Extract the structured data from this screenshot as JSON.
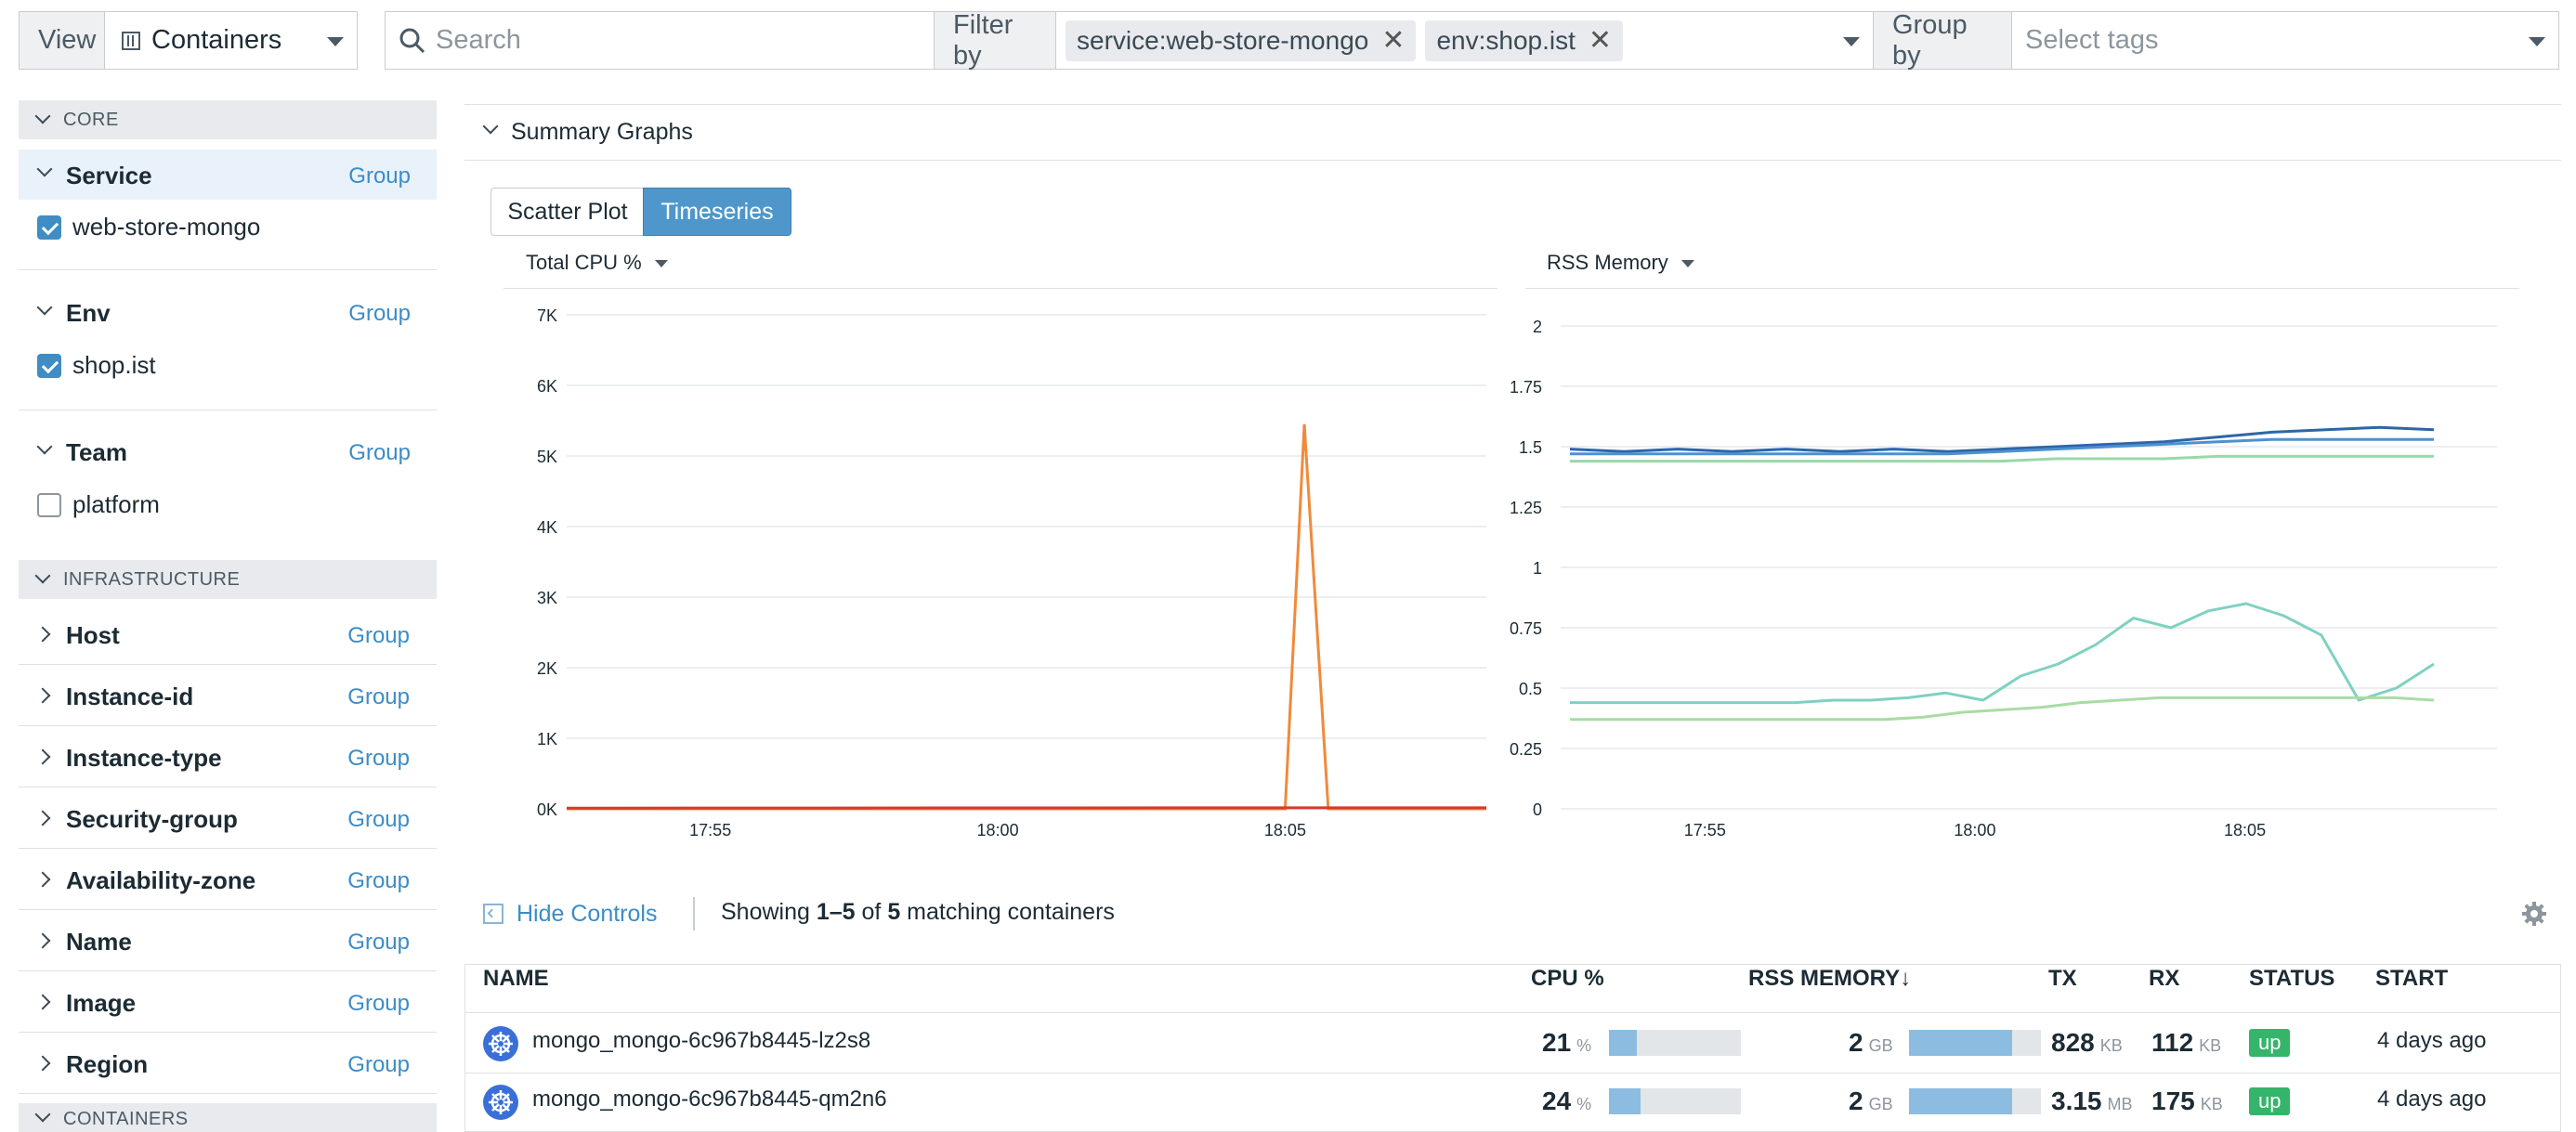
{
  "topbar": {
    "view_label": "View",
    "view_value": "Containers",
    "search_placeholder": "Search",
    "filter_label": "Filter by",
    "filter_tags": [
      "service:web-store-mongo",
      "env:shop.ist"
    ],
    "group_label": "Group by",
    "group_placeholder": "Select tags"
  },
  "sidebar": {
    "core_header": "CORE",
    "infra_header": "INFRASTRUCTURE",
    "containers_header": "CONTAINERS",
    "group_link": "Group",
    "facets": {
      "service": {
        "title": "Service",
        "value": "web-store-mongo",
        "checked": true
      },
      "env": {
        "title": "Env",
        "value": "shop.ist",
        "checked": true
      },
      "team": {
        "title": "Team",
        "value": "platform",
        "checked": false
      }
    },
    "infra_items": [
      "Host",
      "Instance-id",
      "Instance-type",
      "Security-group",
      "Availability-zone",
      "Name",
      "Image",
      "Region"
    ]
  },
  "summary": {
    "title": "Summary Graphs",
    "toggle_scatter": "Scatter Plot",
    "toggle_timeseries": "Timeseries"
  },
  "chart_data": [
    {
      "type": "line",
      "title": "Total CPU %",
      "x_ticks": [
        "17:55",
        "18:00",
        "18:05"
      ],
      "y_ticks": [
        "7K",
        "6K",
        "5K",
        "4K",
        "3K",
        "2K",
        "1K",
        "0K"
      ],
      "ylim": [
        0,
        7000
      ],
      "x": [
        "17:52:30",
        "18:05:00",
        "18:05:20",
        "18:05:45",
        "18:08:30"
      ],
      "series": [
        {
          "color": "#f08a3b",
          "values": [
            0,
            0,
            5450,
            0,
            0
          ]
        },
        {
          "color": "#d63a2a",
          "values": [
            10,
            15,
            15,
            15,
            15
          ]
        }
      ]
    },
    {
      "type": "line",
      "title": "RSS Memory",
      "x_ticks": [
        "17:55",
        "18:00",
        "18:05"
      ],
      "y_ticks": [
        "2",
        "1.75",
        "1.5",
        "1.25",
        "1",
        "0.75",
        "0.5",
        "0.25",
        "0"
      ],
      "ylim": [
        0,
        2
      ],
      "series": [
        {
          "color": "#2e65a8",
          "values": [
            1.49,
            1.48,
            1.49,
            1.48,
            1.49,
            1.48,
            1.49,
            1.48,
            1.49,
            1.5,
            1.51,
            1.52,
            1.54,
            1.56,
            1.57,
            1.58,
            1.57
          ]
        },
        {
          "color": "#4c91d1",
          "values": [
            1.47,
            1.47,
            1.47,
            1.47,
            1.47,
            1.47,
            1.47,
            1.47,
            1.48,
            1.49,
            1.5,
            1.51,
            1.52,
            1.53,
            1.53,
            1.53,
            1.53
          ]
        },
        {
          "color": "#9ad8a8",
          "values": [
            1.44,
            1.44,
            1.44,
            1.44,
            1.44,
            1.44,
            1.44,
            1.44,
            1.44,
            1.45,
            1.45,
            1.45,
            1.46,
            1.46,
            1.46,
            1.46,
            1.46
          ]
        },
        {
          "color": "#7fd1c2",
          "values": [
            0.44,
            0.44,
            0.44,
            0.44,
            0.44,
            0.44,
            0.44,
            0.45,
            0.45,
            0.46,
            0.48,
            0.45,
            0.55,
            0.6,
            0.68,
            0.79,
            0.75,
            0.82,
            0.85,
            0.8,
            0.72,
            0.45,
            0.5,
            0.6
          ]
        },
        {
          "color": "#a9dca3",
          "values": [
            0.37,
            0.37,
            0.37,
            0.37,
            0.37,
            0.37,
            0.37,
            0.37,
            0.37,
            0.38,
            0.4,
            0.41,
            0.42,
            0.44,
            0.45,
            0.46,
            0.46,
            0.46,
            0.46,
            0.46,
            0.46,
            0.46,
            0.45
          ]
        }
      ]
    }
  ],
  "controls": {
    "hide_controls": "Hide Controls",
    "showing_prefix": "Showing ",
    "showing_range": "1–5",
    "showing_of": " of ",
    "showing_total": "5",
    "showing_suffix": " matching containers"
  },
  "table": {
    "columns": [
      "NAME",
      "CPU %",
      "RSS MEMORY↓",
      "TX",
      "RX",
      "STATUS",
      "START"
    ],
    "rows": [
      {
        "name": "mongo_mongo-6c967b8445-lz2s8",
        "cpu": "21",
        "cpu_unit": "%",
        "cpu_fraction": 0.21,
        "mem": "2",
        "mem_unit": "GB",
        "mem_fraction": 0.78,
        "tx": "828",
        "tx_unit": "KB",
        "rx": "112",
        "rx_unit": "KB",
        "status": "up",
        "start": "4 days ago"
      },
      {
        "name": "mongo_mongo-6c967b8445-qm2n6",
        "cpu": "24",
        "cpu_unit": "%",
        "cpu_fraction": 0.24,
        "mem": "2",
        "mem_unit": "GB",
        "mem_fraction": 0.78,
        "tx": "3.15",
        "tx_unit": "MB",
        "rx": "175",
        "rx_unit": "KB",
        "status": "up",
        "start": "4 days ago"
      }
    ]
  }
}
